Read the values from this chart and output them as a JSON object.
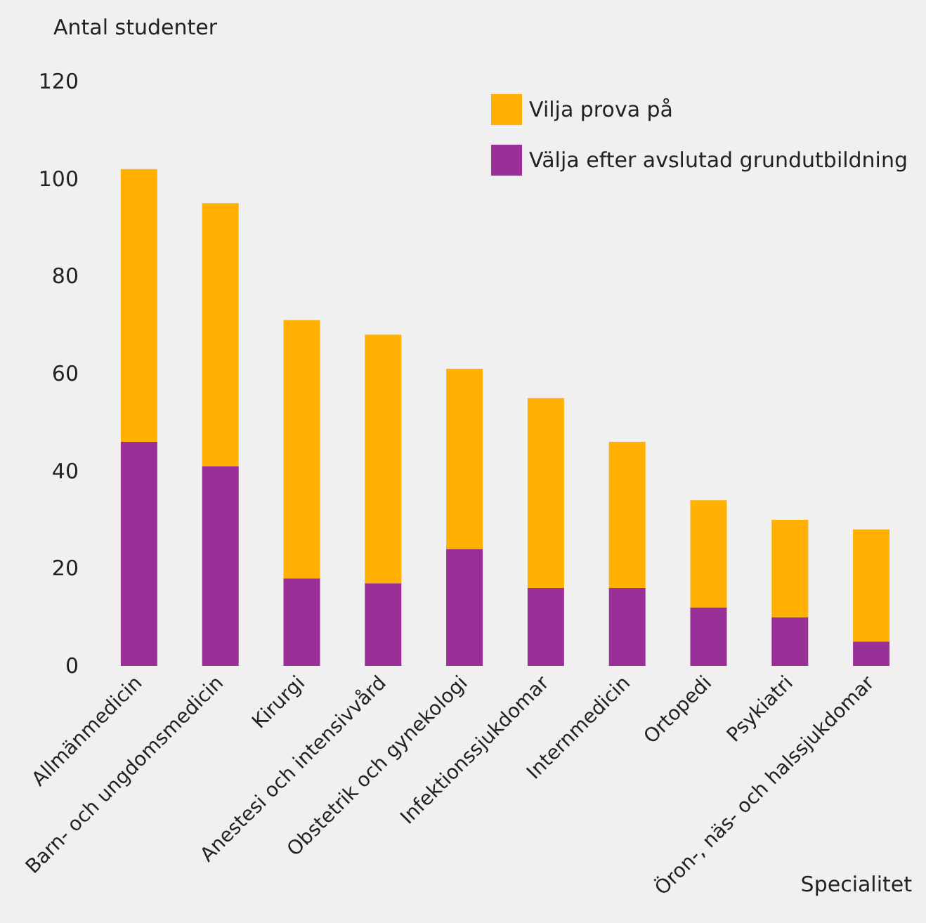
{
  "chart_data": {
    "type": "bar",
    "stacked": true,
    "ylabel": "Antal studenter",
    "xlabel": "Specialitet",
    "categories": [
      "Allmänmedicin",
      "Barn- och ungdomsmedicin",
      "Kirurgi",
      "Anestesi och intensivvård",
      "Obstetrik och gynekologi",
      "Infektionssjukdomar",
      "Internmedicin",
      "Ortopedi",
      "Psykiatri",
      "Öron-, näs- och halssjukdomar"
    ],
    "series": [
      {
        "name": "Välja efter avslutad grundutbildning",
        "color": "#9b2f98",
        "values": [
          46,
          41,
          18,
          17,
          24,
          16,
          16,
          12,
          10,
          5
        ]
      },
      {
        "name": "Vilja prova på",
        "color": "#ffb000",
        "values": [
          56,
          54,
          53,
          51,
          37,
          39,
          30,
          22,
          20,
          23
        ]
      }
    ],
    "ylim": [
      0,
      120
    ],
    "yticks": [
      0,
      20,
      40,
      60,
      80,
      100,
      120
    ],
    "grid": false,
    "legend": "top right"
  }
}
